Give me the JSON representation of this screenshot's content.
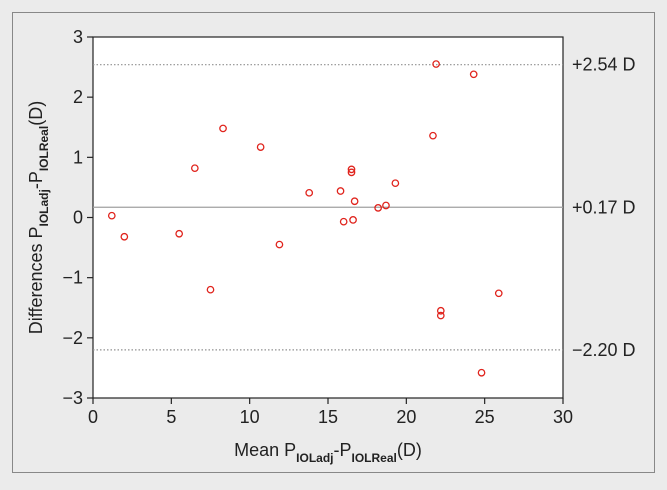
{
  "chart_data": {
    "type": "scatter",
    "title": "",
    "xlabel": {
      "prefix": "Mean P",
      "sub1": "IOLadj",
      "mid": "-P",
      "sub2": "IOLReal",
      "suffix": "(D)"
    },
    "ylabel": {
      "prefix": "Differences P",
      "sub1": "IOLadj",
      "mid": "-P",
      "sub2": "IOLReal",
      "suffix": "(D)"
    },
    "xlim": [
      0,
      30
    ],
    "ylim": [
      -3,
      3
    ],
    "x_ticks": [
      0,
      5,
      10,
      15,
      20,
      25,
      30
    ],
    "y_ticks": [
      -3,
      -2,
      -1,
      0,
      1,
      2,
      3
    ],
    "x_tick_labels": [
      "0",
      "5",
      "10",
      "15",
      "20",
      "25",
      "30"
    ],
    "y_tick_labels": [
      "−3",
      "−2",
      "−1",
      "0",
      "1",
      "2",
      "3"
    ],
    "grid": false,
    "marker_color": "#e0231c",
    "reference_lines": [
      {
        "value": 2.54,
        "label": "+2.54 D",
        "style": "dotted",
        "color": "#909090"
      },
      {
        "value": 0.17,
        "label": "+0.17 D",
        "style": "solid",
        "color": "#a0a0a0"
      },
      {
        "value": -2.2,
        "label": "−2.20 D",
        "style": "dotted",
        "color": "#909090"
      }
    ],
    "points": [
      {
        "x": 1.2,
        "y": 0.03
      },
      {
        "x": 2.0,
        "y": -0.32
      },
      {
        "x": 5.5,
        "y": -0.27
      },
      {
        "x": 6.5,
        "y": 0.82
      },
      {
        "x": 7.5,
        "y": -1.2
      },
      {
        "x": 8.3,
        "y": 1.48
      },
      {
        "x": 10.7,
        "y": 1.17
      },
      {
        "x": 11.9,
        "y": -0.45
      },
      {
        "x": 13.8,
        "y": 0.41
      },
      {
        "x": 15.8,
        "y": 0.44
      },
      {
        "x": 16.0,
        "y": -0.07
      },
      {
        "x": 16.5,
        "y": 0.8
      },
      {
        "x": 16.5,
        "y": 0.75
      },
      {
        "x": 16.6,
        "y": -0.04
      },
      {
        "x": 16.7,
        "y": 0.27
      },
      {
        "x": 18.2,
        "y": 0.16
      },
      {
        "x": 18.7,
        "y": 0.2
      },
      {
        "x": 19.3,
        "y": 0.57
      },
      {
        "x": 21.7,
        "y": 1.36
      },
      {
        "x": 21.9,
        "y": 2.55
      },
      {
        "x": 22.2,
        "y": -1.55
      },
      {
        "x": 22.2,
        "y": -1.63
      },
      {
        "x": 24.3,
        "y": 2.38
      },
      {
        "x": 24.8,
        "y": -2.58
      },
      {
        "x": 25.9,
        "y": -1.26
      }
    ]
  }
}
